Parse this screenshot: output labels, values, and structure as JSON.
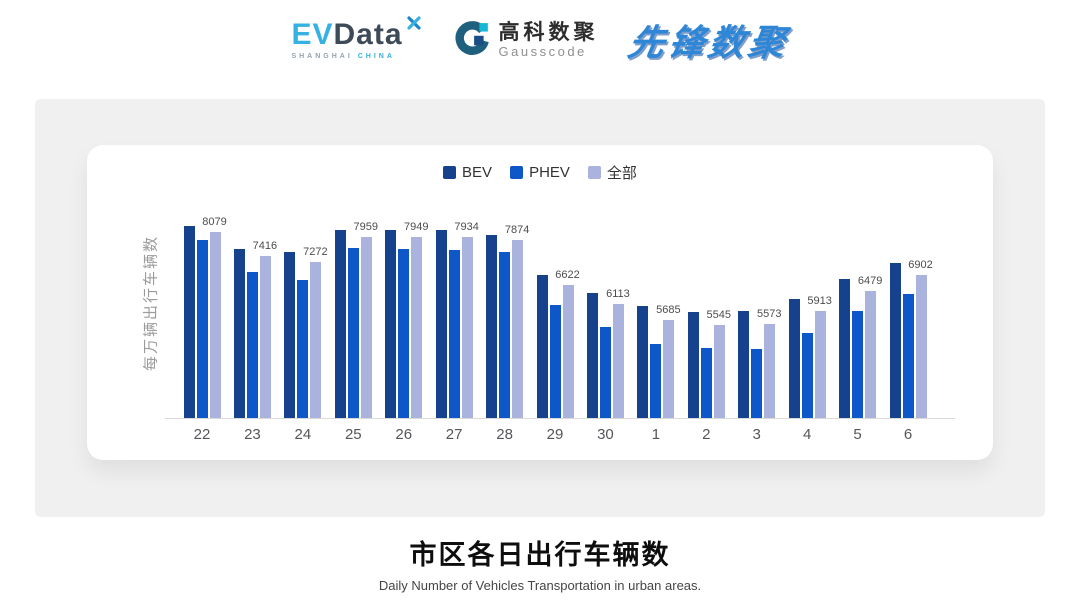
{
  "header": {
    "evdata": {
      "ev": "EV",
      "data": "Data",
      "sub_left": "SHANGHAI",
      "sub_right": "CHINA"
    },
    "gausscode": {
      "cn": "高科数聚",
      "en": "Gausscode"
    },
    "pioneer": {
      "text": "先锋数聚"
    }
  },
  "chart_data": {
    "type": "bar",
    "title": "市区各日出行车辆数",
    "subtitle": "Daily Number of Vehicles Transportation in urban areas.",
    "ylabel": "每万辆出行车辆数",
    "xlabel": "",
    "categories": [
      "22",
      "23",
      "24",
      "25",
      "26",
      "27",
      "28",
      "29",
      "30",
      "1",
      "2",
      "3",
      "4",
      "5",
      "6"
    ],
    "series": [
      {
        "name": "BEV",
        "color": "#16418c",
        "values": [
          8240,
          7630,
          7550,
          8130,
          8140,
          8130,
          8010,
          6920,
          6430,
          6060,
          5890,
          5920,
          6250,
          6790,
          7230
        ]
      },
      {
        "name": "PHEV",
        "color": "#0d57c8",
        "values": [
          7860,
          6990,
          6770,
          7640,
          7620,
          7600,
          7550,
          6090,
          5490,
          5030,
          4920,
          4900,
          5320,
          5920,
          6380
        ]
      },
      {
        "name": "全部",
        "color": "#a9b3de",
        "values": [
          8079,
          7416,
          7272,
          7959,
          7949,
          7934,
          7874,
          6622,
          6113,
          5685,
          5545,
          5573,
          5913,
          6479,
          6902
        ]
      }
    ],
    "value_labels": [
      8079,
      7416,
      7272,
      7959,
      7949,
      7934,
      7874,
      6622,
      6113,
      5685,
      5545,
      5573,
      5913,
      6479,
      6902
    ],
    "value_labels_on_series": "全部",
    "ylim": [
      3000,
      8400
    ],
    "grid": false,
    "legend_position": "top"
  },
  "footer": {
    "title": "市区各日出行车辆数",
    "subtitle": "Daily Number of Vehicles Transportation in urban areas."
  },
  "colors": {
    "bev": "#16418c",
    "phev": "#0d57c8",
    "all": "#a9b3de",
    "panel_bg": "#f0f0f1",
    "card_bg": "#ffffff",
    "axis_line": "#d9d9d9",
    "evdata_cyan": "#35b1e2",
    "evdata_slate": "#3d4a58",
    "pioneer_blue": "#2e86d6"
  }
}
